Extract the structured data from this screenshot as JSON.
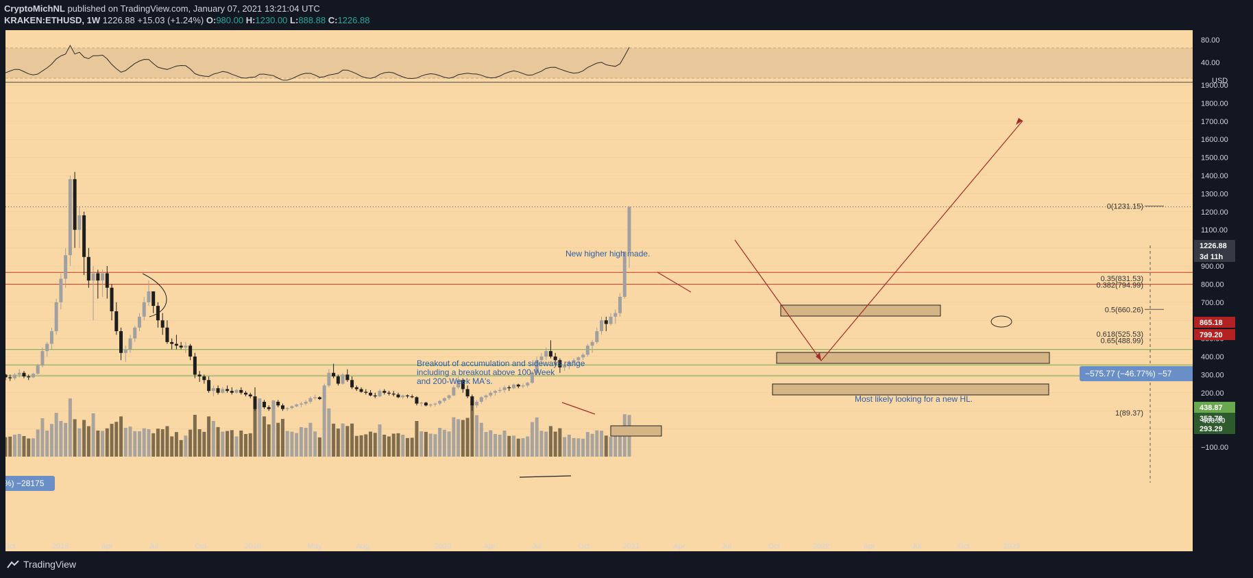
{
  "header": {
    "author": "CryptoMichNL",
    "published": " published on TradingView.com, January 07, 2021 13:21:04 UTC",
    "symbol": "KRAKEN:ETHUSD, 1W",
    "last": "1226.88",
    "change": "+15.03 (+1.24%)",
    "o_label": "O:",
    "o": "980.00",
    "h_label": "H:",
    "h": "1230.00",
    "l_label": "L:",
    "l": "888.88",
    "c_label": "C:",
    "c": "1226.88"
  },
  "footer": {
    "brand": "TradingView"
  },
  "colors": {
    "background": "#131722",
    "chart_bg": "#f9d8a6",
    "bull": "#a0a0a0",
    "bear": "#1e1e1e",
    "resistance": "#c0392b",
    "support": "#6aa84f",
    "annotation_text": "#2d5da6"
  },
  "rsi": {
    "tick_labels": [
      "80.00",
      "40.00"
    ]
  },
  "chart_data": {
    "type": "candlestick",
    "currency": "USD",
    "y_ticks": [
      "1900.00",
      "1800.00",
      "1700.00",
      "1600.00",
      "1500.00",
      "1400.00",
      "1300.00",
      "1200.00",
      "1100.00",
      "1000.00",
      "900.00",
      "800.00",
      "700.00",
      "600.00",
      "500.00",
      "400.00",
      "300.00",
      "200.00",
      "100.00",
      "0.00",
      "−100.00"
    ],
    "x_ticks": [
      "Oct",
      "2018",
      "Apr",
      "Jul",
      "Oct",
      "2019",
      "May",
      "Aug",
      "2020",
      "Apr",
      "Jul",
      "Oct",
      "2021",
      "Apr",
      "Jul",
      "Oct",
      "2022",
      "Apr",
      "Jul",
      "Oct",
      "2023"
    ],
    "ylim": [
      -160,
      1940
    ],
    "price_tags": [
      {
        "label": "1226.88",
        "value": 1226.88,
        "style": "last"
      },
      {
        "label": "3d 11h",
        "value": 1180,
        "style": "last"
      },
      {
        "label": "865.18",
        "value": 865.18,
        "style": "red"
      },
      {
        "label": "799.20",
        "value": 799.2,
        "style": "red"
      },
      {
        "label": "438.87",
        "value": 438.87,
        "style": "green"
      },
      {
        "label": "353.78",
        "value": 353.78,
        "style": "dark"
      },
      {
        "label": "293.29",
        "value": 293.29,
        "style": "dark"
      },
      {
        "label": "400.00",
        "value": 405,
        "style": "plain"
      }
    ],
    "horizontal_levels": [
      {
        "value": 865.18,
        "type": "resistance"
      },
      {
        "value": 799.2,
        "type": "resistance"
      },
      {
        "value": 438.87,
        "type": "support"
      },
      {
        "value": 353.78,
        "type": "support"
      },
      {
        "value": 293.29,
        "type": "support"
      }
    ],
    "fib_levels": [
      {
        "label": "0(1231.15)",
        "value": 1231.15
      },
      {
        "label": "0.35(831.53)",
        "value": 831.53
      },
      {
        "label": "0.382(794.99)",
        "value": 794.99
      },
      {
        "label": "0.5(660.26)",
        "value": 660.26
      },
      {
        "label": "0.618(525.53)",
        "value": 525.53
      },
      {
        "label": "0.65(488.99)",
        "value": 488.99
      },
      {
        "label": "1(89.37)",
        "value": 89.37
      }
    ],
    "measure_tag": "−575.77 (−46.77%) −57",
    "volume_tag": "%) −28175",
    "annotations": [
      {
        "text": "New higher high made."
      },
      {
        "text": "Breakout of accumulation and sideways range"
      },
      {
        "text": "including a breakout above 100-Week"
      },
      {
        "text": "and 200-Week MA's."
      },
      {
        "text": "Most likely looking for a new HL."
      }
    ],
    "candles": [
      [
        300,
        305,
        270,
        285
      ],
      [
        285,
        300,
        265,
        280
      ],
      [
        280,
        310,
        270,
        300
      ],
      [
        300,
        330,
        285,
        310
      ],
      [
        310,
        320,
        280,
        290
      ],
      [
        290,
        300,
        270,
        285
      ],
      [
        285,
        310,
        280,
        305
      ],
      [
        305,
        360,
        300,
        350
      ],
      [
        350,
        450,
        340,
        430
      ],
      [
        430,
        480,
        400,
        470
      ],
      [
        470,
        560,
        440,
        540
      ],
      [
        540,
        720,
        520,
        700
      ],
      [
        700,
        860,
        660,
        830
      ],
      [
        830,
        1000,
        780,
        960
      ],
      [
        960,
        1400,
        900,
        1380
      ],
      [
        1380,
        1420,
        1000,
        1100
      ],
      [
        1100,
        1230,
        1000,
        1180
      ],
      [
        1180,
        1200,
        850,
        950
      ],
      [
        950,
        1000,
        780,
        820
      ],
      [
        820,
        900,
        600,
        860
      ],
      [
        860,
        880,
        720,
        820
      ],
      [
        820,
        880,
        730,
        860
      ],
      [
        860,
        900,
        720,
        780
      ],
      [
        780,
        800,
        600,
        650
      ],
      [
        650,
        700,
        520,
        540
      ],
      [
        540,
        560,
        380,
        420
      ],
      [
        420,
        460,
        370,
        440
      ],
      [
        440,
        520,
        420,
        500
      ],
      [
        500,
        570,
        480,
        560
      ],
      [
        560,
        640,
        540,
        620
      ],
      [
        620,
        730,
        600,
        700
      ],
      [
        700,
        820,
        680,
        760
      ],
      [
        760,
        760,
        640,
        680
      ],
      [
        680,
        700,
        560,
        600
      ],
      [
        600,
        640,
        520,
        560
      ],
      [
        560,
        600,
        470,
        480
      ],
      [
        480,
        500,
        440,
        470
      ],
      [
        470,
        520,
        440,
        460
      ],
      [
        460,
        480,
        440,
        450
      ],
      [
        450,
        480,
        420,
        460
      ],
      [
        460,
        470,
        380,
        400
      ],
      [
        400,
        420,
        280,
        300
      ],
      [
        300,
        320,
        260,
        290
      ],
      [
        290,
        300,
        250,
        270
      ],
      [
        270,
        290,
        200,
        210
      ],
      [
        210,
        240,
        180,
        225
      ],
      [
        225,
        240,
        190,
        200
      ],
      [
        200,
        230,
        195,
        220
      ],
      [
        220,
        240,
        200,
        210
      ],
      [
        210,
        230,
        190,
        200
      ],
      [
        200,
        220,
        195,
        215
      ],
      [
        215,
        230,
        190,
        200
      ],
      [
        200,
        210,
        180,
        190
      ],
      [
        190,
        200,
        170,
        180
      ],
      [
        180,
        230,
        100,
        110
      ],
      [
        110,
        160,
        90,
        150
      ],
      [
        150,
        160,
        110,
        120
      ],
      [
        120,
        130,
        100,
        110
      ],
      [
        110,
        160,
        105,
        150
      ],
      [
        150,
        160,
        120,
        130
      ],
      [
        130,
        140,
        100,
        110
      ],
      [
        110,
        120,
        100,
        115
      ],
      [
        115,
        130,
        110,
        125
      ],
      [
        125,
        140,
        120,
        135
      ],
      [
        135,
        150,
        120,
        140
      ],
      [
        140,
        160,
        130,
        150
      ],
      [
        150,
        180,
        140,
        170
      ],
      [
        170,
        190,
        160,
        175
      ],
      [
        175,
        180,
        160,
        165
      ],
      [
        165,
        250,
        160,
        240
      ],
      [
        240,
        330,
        230,
        310
      ],
      [
        310,
        360,
        280,
        290
      ],
      [
        290,
        300,
        240,
        250
      ],
      [
        250,
        310,
        245,
        300
      ],
      [
        300,
        330,
        260,
        270
      ],
      [
        270,
        290,
        220,
        230
      ],
      [
        230,
        240,
        210,
        220
      ],
      [
        220,
        230,
        200,
        205
      ],
      [
        205,
        220,
        190,
        200
      ],
      [
        200,
        215,
        180,
        185
      ],
      [
        185,
        200,
        170,
        180
      ],
      [
        180,
        220,
        175,
        210
      ],
      [
        210,
        220,
        190,
        200
      ],
      [
        200,
        210,
        185,
        195
      ],
      [
        195,
        210,
        180,
        190
      ],
      [
        190,
        200,
        170,
        175
      ],
      [
        175,
        190,
        165,
        185
      ],
      [
        185,
        190,
        170,
        180
      ],
      [
        180,
        190,
        170,
        175
      ],
      [
        175,
        180,
        130,
        140
      ],
      [
        140,
        150,
        125,
        145
      ],
      [
        145,
        150,
        125,
        130
      ],
      [
        130,
        140,
        120,
        135
      ],
      [
        135,
        145,
        125,
        140
      ],
      [
        140,
        160,
        130,
        155
      ],
      [
        155,
        175,
        145,
        170
      ],
      [
        170,
        190,
        160,
        185
      ],
      [
        185,
        240,
        180,
        230
      ],
      [
        230,
        290,
        220,
        270
      ],
      [
        270,
        280,
        200,
        220
      ],
      [
        220,
        240,
        170,
        180
      ],
      [
        180,
        190,
        100,
        130
      ],
      [
        130,
        160,
        115,
        150
      ],
      [
        150,
        180,
        140,
        175
      ],
      [
        175,
        190,
        160,
        185
      ],
      [
        185,
        210,
        175,
        200
      ],
      [
        200,
        215,
        185,
        210
      ],
      [
        210,
        230,
        200,
        215
      ],
      [
        215,
        240,
        200,
        230
      ],
      [
        230,
        240,
        210,
        225
      ],
      [
        225,
        250,
        220,
        245
      ],
      [
        245,
        250,
        225,
        235
      ],
      [
        235,
        250,
        225,
        240
      ],
      [
        240,
        260,
        230,
        255
      ],
      [
        255,
        320,
        250,
        310
      ],
      [
        310,
        400,
        300,
        380
      ],
      [
        380,
        420,
        350,
        400
      ],
      [
        400,
        450,
        380,
        430
      ],
      [
        430,
        490,
        390,
        400
      ],
      [
        400,
        420,
        350,
        380
      ],
      [
        380,
        390,
        310,
        340
      ],
      [
        340,
        360,
        320,
        350
      ],
      [
        350,
        380,
        330,
        370
      ],
      [
        370,
        390,
        350,
        380
      ],
      [
        380,
        400,
        360,
        395
      ],
      [
        395,
        420,
        380,
        410
      ],
      [
        410,
        470,
        400,
        460
      ],
      [
        460,
        490,
        420,
        480
      ],
      [
        480,
        560,
        470,
        540
      ],
      [
        540,
        620,
        520,
        600
      ],
      [
        600,
        620,
        540,
        580
      ],
      [
        580,
        640,
        570,
        620
      ],
      [
        620,
        660,
        580,
        640
      ],
      [
        640,
        750,
        620,
        730
      ],
      [
        730,
        980,
        720,
        980
      ],
      [
        980,
        1230,
        889,
        1227
      ]
    ],
    "volume_note": "volume histogram in lower pane"
  }
}
